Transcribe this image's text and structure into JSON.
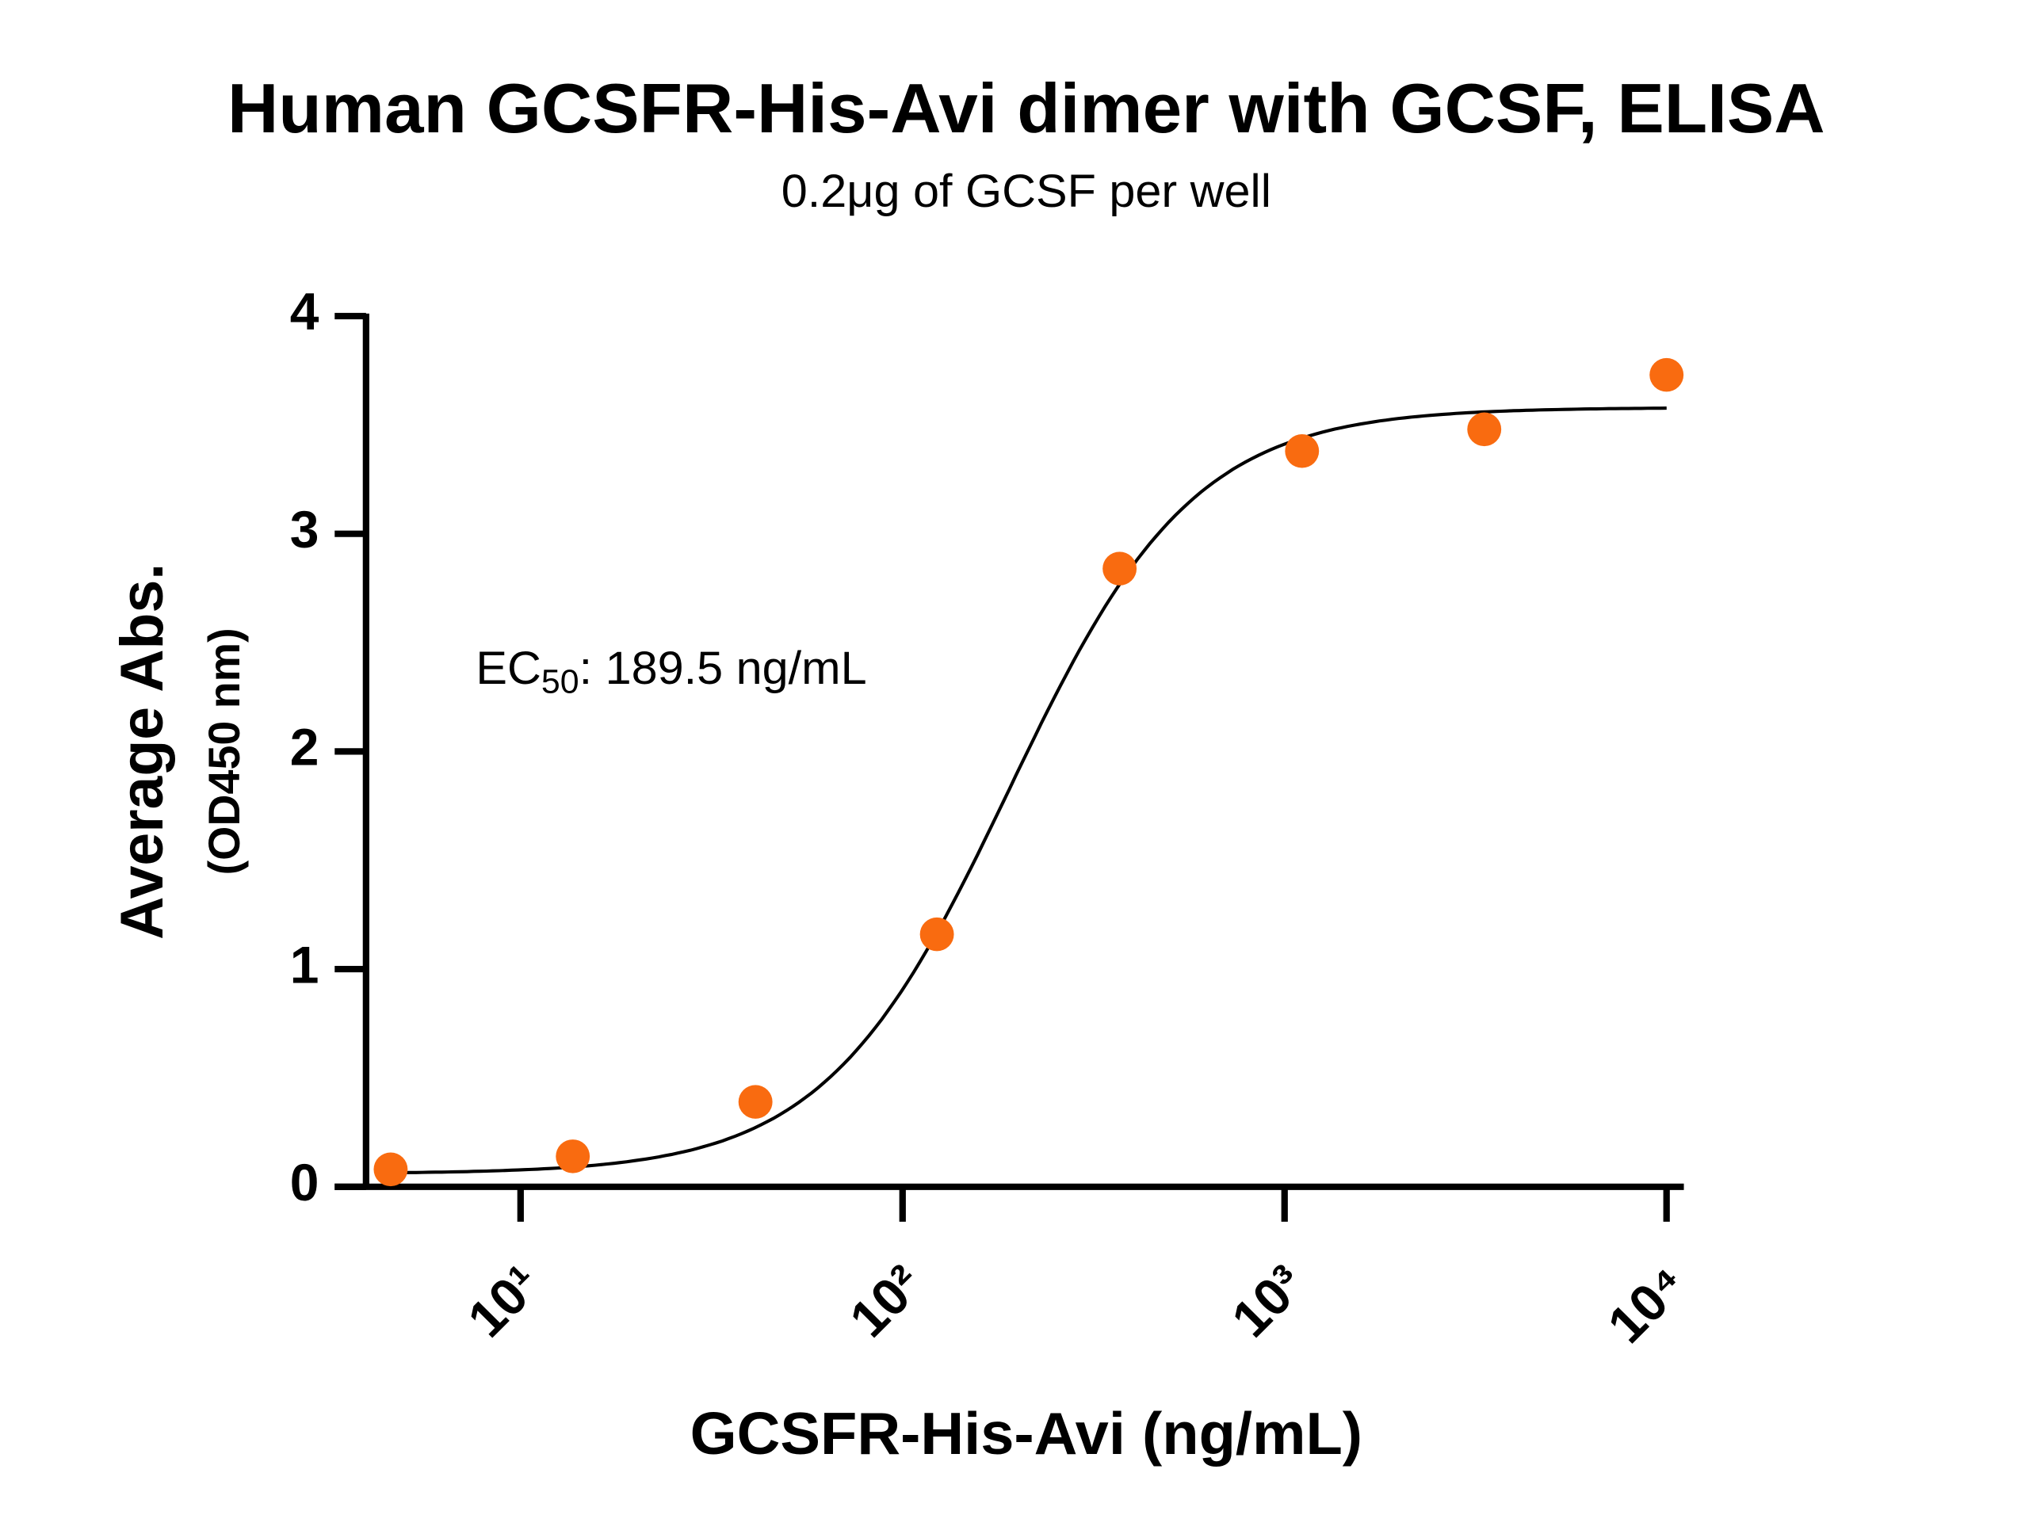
{
  "chart_data": {
    "type": "scatter",
    "title": "Human GCSFR-His-Avi dimer with GCSF, ELISA",
    "subtitle": "0.2μg of GCSF per well",
    "xlabel": "GCSFR-His-Avi (ng/mL)",
    "ylabel": [
      "Average Abs.",
      "(OD450 nm)"
    ],
    "annotation": {
      "prefix": "EC",
      "subscript": "50",
      "suffix": ": 189.5 ng/mL"
    },
    "x": [
      4.57,
      13.7,
      41.2,
      123,
      370,
      1111,
      3333,
      10000
    ],
    "series": [
      {
        "name": "GCSF",
        "color": "#f96b10",
        "values": [
          0.08,
          0.14,
          0.39,
          1.16,
          2.84,
          3.38,
          3.48,
          3.73
        ]
      }
    ],
    "fit": {
      "bottom": 0.06,
      "top": 3.58,
      "ec50": 189.5,
      "hill": 1.8,
      "color": "#000000"
    },
    "xscale": "log",
    "xlim": [
      3.94,
      11100
    ],
    "xticks": [
      {
        "value": 10,
        "label": "10¹"
      },
      {
        "value": 100,
        "label": "10²"
      },
      {
        "value": 1000,
        "label": "10³"
      },
      {
        "value": 10000,
        "label": "10⁴"
      }
    ],
    "ylim": [
      0,
      4
    ],
    "yticks": [
      0,
      1,
      2,
      3,
      4
    ]
  }
}
